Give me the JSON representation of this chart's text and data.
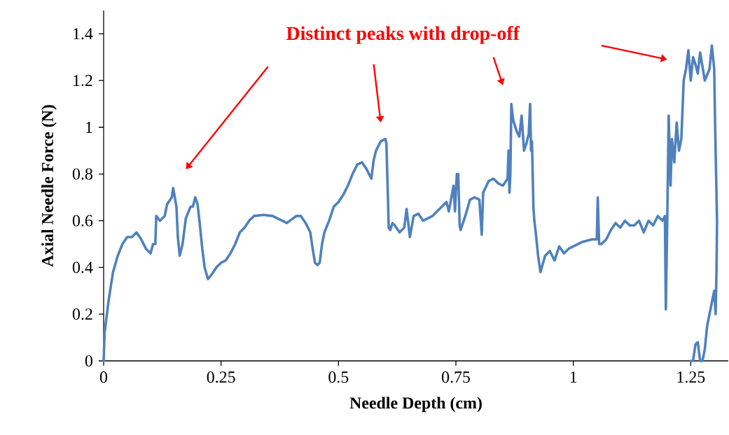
{
  "chart_data": {
    "type": "line",
    "xlabel": "Needle Depth (cm)",
    "ylabel": "Axial Needle Force (N)",
    "annotations": [
      "Distinct peaks with drop-off"
    ],
    "xlim": [
      0,
      1.33
    ],
    "ylim": [
      0,
      1.5
    ],
    "xticks": [
      0,
      0.25,
      0.5,
      0.75,
      1,
      1.25
    ],
    "yticks": [
      0,
      0.2,
      0.4,
      0.6,
      0.8,
      1,
      1.2,
      1.4
    ],
    "grid": false,
    "marker": "none",
    "line_style": "solid",
    "series": [
      {
        "color": "#4f81bd",
        "x": [
          0,
          0.002,
          0.01,
          0.02,
          0.03,
          0.04,
          0.05,
          0.06,
          0.07,
          0.08,
          0.09,
          0.1,
          0.105,
          0.11,
          0.112,
          0.12,
          0.13,
          0.135,
          0.145,
          0.148,
          0.155,
          0.158,
          0.162,
          0.168,
          0.175,
          0.185,
          0.19,
          0.195,
          0.2,
          0.205,
          0.21,
          0.215,
          0.222,
          0.23,
          0.24,
          0.25,
          0.26,
          0.27,
          0.28,
          0.29,
          0.3,
          0.31,
          0.32,
          0.34,
          0.36,
          0.38,
          0.39,
          0.41,
          0.42,
          0.43,
          0.44,
          0.445,
          0.45,
          0.455,
          0.46,
          0.465,
          0.47,
          0.48,
          0.49,
          0.5,
          0.51,
          0.52,
          0.53,
          0.54,
          0.55,
          0.56,
          0.57,
          0.575,
          0.58,
          0.59,
          0.6,
          0.602,
          0.605,
          0.607,
          0.61,
          0.615,
          0.62,
          0.63,
          0.64,
          0.645,
          0.648,
          0.652,
          0.66,
          0.67,
          0.68,
          0.7,
          0.72,
          0.73,
          0.735,
          0.745,
          0.748,
          0.752,
          0.755,
          0.758,
          0.76,
          0.77,
          0.78,
          0.79,
          0.8,
          0.805,
          0.808,
          0.82,
          0.83,
          0.84,
          0.85,
          0.86,
          0.862,
          0.864,
          0.866,
          0.868,
          0.872,
          0.88,
          0.885,
          0.89,
          0.895,
          0.9,
          0.905,
          0.908,
          0.91,
          0.912,
          0.915,
          0.917,
          0.92,
          0.925,
          0.93,
          0.94,
          0.95,
          0.96,
          0.97,
          0.98,
          0.99,
          1.0,
          1.02,
          1.04,
          1.05,
          1.052,
          1.055,
          1.06,
          1.07,
          1.08,
          1.09,
          1.1,
          1.11,
          1.12,
          1.13,
          1.14,
          1.15,
          1.16,
          1.17,
          1.18,
          1.19,
          1.195,
          1.197,
          1.2,
          1.203,
          1.207,
          1.21,
          1.215,
          1.22,
          1.225,
          1.23,
          1.235,
          1.24,
          1.245,
          1.25,
          1.255,
          1.26,
          1.265,
          1.27,
          1.28,
          1.29,
          1.295,
          1.3,
          1.302,
          1.304,
          1.306,
          1.305,
          1.303,
          1.3,
          1.29,
          1.285,
          1.28,
          1.275,
          1.27,
          1.265,
          1.26,
          1.255,
          1.25
        ],
        "values": [
          0,
          0.12,
          0.25,
          0.38,
          0.45,
          0.5,
          0.53,
          0.53,
          0.55,
          0.52,
          0.48,
          0.46,
          0.5,
          0.5,
          0.62,
          0.6,
          0.62,
          0.67,
          0.7,
          0.74,
          0.66,
          0.53,
          0.45,
          0.5,
          0.61,
          0.66,
          0.66,
          0.7,
          0.67,
          0.58,
          0.48,
          0.4,
          0.35,
          0.37,
          0.4,
          0.42,
          0.43,
          0.46,
          0.5,
          0.55,
          0.57,
          0.6,
          0.62,
          0.625,
          0.62,
          0.6,
          0.59,
          0.62,
          0.62,
          0.59,
          0.55,
          0.48,
          0.42,
          0.41,
          0.42,
          0.5,
          0.55,
          0.6,
          0.66,
          0.68,
          0.71,
          0.75,
          0.8,
          0.84,
          0.85,
          0.82,
          0.78,
          0.86,
          0.9,
          0.94,
          0.95,
          0.93,
          0.72,
          0.57,
          0.56,
          0.59,
          0.58,
          0.55,
          0.57,
          0.65,
          0.6,
          0.53,
          0.62,
          0.63,
          0.6,
          0.62,
          0.66,
          0.68,
          0.64,
          0.75,
          0.64,
          0.8,
          0.8,
          0.58,
          0.56,
          0.62,
          0.69,
          0.7,
          0.69,
          0.54,
          0.72,
          0.77,
          0.78,
          0.76,
          0.75,
          0.78,
          0.9,
          0.72,
          0.8,
          1.1,
          1.03,
          0.98,
          0.96,
          1.05,
          0.9,
          0.93,
          0.97,
          1.1,
          0.9,
          0.94,
          0.66,
          0.6,
          0.55,
          0.45,
          0.38,
          0.45,
          0.47,
          0.43,
          0.49,
          0.46,
          0.48,
          0.49,
          0.51,
          0.52,
          0.52,
          0.7,
          0.5,
          0.5,
          0.52,
          0.56,
          0.59,
          0.57,
          0.6,
          0.58,
          0.58,
          0.6,
          0.55,
          0.6,
          0.58,
          0.62,
          0.6,
          0.62,
          0.22,
          0.6,
          1.05,
          0.75,
          0.95,
          0.85,
          1.02,
          0.9,
          0.95,
          1.2,
          1.25,
          1.33,
          1.2,
          1.3,
          1.27,
          1.23,
          1.32,
          1.2,
          1.25,
          1.35,
          1.25,
          1.0,
          0.8,
          0.6,
          0.4,
          0.2,
          0.3,
          0.2,
          0.15,
          0.05,
          0,
          0,
          0.08,
          0.07,
          0,
          0
        ]
      }
    ]
  }
}
